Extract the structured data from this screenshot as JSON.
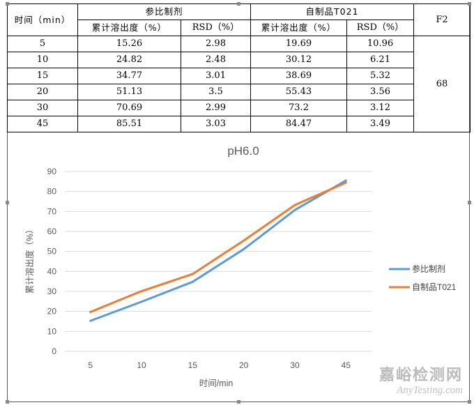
{
  "table": {
    "headers": {
      "time": "时间（min）",
      "group_ref": "参比制剂",
      "group_self": "自制品T021",
      "f2": "F2",
      "cum_ref": "累计溶出度（%）",
      "rsd_ref": "RSD（%）",
      "cum_self": "累计溶出度（%）",
      "rsd_self": "RSD（%）"
    },
    "rows": [
      {
        "time": "5",
        "ref": "15.26",
        "ref_rsd": "2.98",
        "self": "19.69",
        "self_rsd": "10.96"
      },
      {
        "time": "10",
        "ref": "24.82",
        "ref_rsd": "2.48",
        "self": "30.12",
        "self_rsd": "6.21"
      },
      {
        "time": "15",
        "ref": "34.77",
        "ref_rsd": "3.01",
        "self": "38.69",
        "self_rsd": "5.32"
      },
      {
        "time": "20",
        "ref": "51.13",
        "ref_rsd": "3.5",
        "self": "55.43",
        "self_rsd": "3.56"
      },
      {
        "time": "30",
        "ref": "70.69",
        "ref_rsd": "2.99",
        "self": "73.2",
        "self_rsd": "3.12"
      },
      {
        "time": "45",
        "ref": "85.51",
        "ref_rsd": "3.03",
        "self": "84.47",
        "self_rsd": "3.49"
      }
    ],
    "f2_value": "68"
  },
  "chart_data": {
    "type": "line",
    "title": "pH6.0",
    "xlabel": "时间/min",
    "ylabel": "累计溶出度（%）",
    "categories": [
      "5",
      "10",
      "15",
      "20",
      "30",
      "45"
    ],
    "ylim": [
      0,
      90
    ],
    "yticks": [
      0,
      10,
      20,
      30,
      40,
      50,
      60,
      70,
      80,
      90
    ],
    "grid": true,
    "legend_position": "right",
    "series": [
      {
        "name": "参比制剂",
        "color": "#5B9BD5",
        "values": [
          15.26,
          24.82,
          34.77,
          51.13,
          70.69,
          85.51
        ]
      },
      {
        "name": "自制品T021",
        "color": "#ED7D31",
        "values": [
          19.69,
          30.12,
          38.69,
          55.43,
          73.2,
          84.47
        ]
      }
    ]
  },
  "watermark": {
    "cn": "嘉峪检测网",
    "en": "AnyTesting.com"
  }
}
